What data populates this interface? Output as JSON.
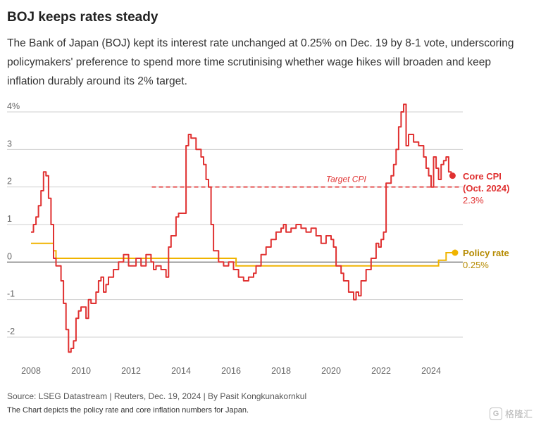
{
  "header": {
    "title": "BOJ keeps rates steady",
    "subtitle": "The Bank of Japan (BOJ) kept its interest rate unchanged at 0.25% on Dec. 19 by 8-1 vote, underscoring policymakers' preference to spend more time scrutinising whether wage hikes will broaden and keep inflation durably around its 2% target."
  },
  "footer": {
    "source": "Source: LSEG Datastream | Reuters, Dec. 19, 2024 | By Pasit Kongkunakornkul",
    "caption": "The Chart depicts the policy rate and core inflation numbers for Japan.",
    "watermark": "格隆汇",
    "watermark_badge": "G"
  },
  "colors": {
    "cpi": "#e03131",
    "policy": "#f0b400",
    "policy_label": "#b58a00",
    "grid": "#cfcfcf",
    "zero": "#555555",
    "axis_text": "#666666"
  },
  "chart_data": {
    "type": "line",
    "title": "BOJ keeps rates steady",
    "xlabel": "",
    "ylabel": "",
    "xlim": [
      2007.5,
      2025.8
    ],
    "ylim": [
      -2.5,
      4.2
    ],
    "x_ticks": [
      2008,
      2010,
      2012,
      2014,
      2016,
      2018,
      2020,
      2022,
      2024
    ],
    "x_tick_labels": [
      "2008",
      "2010",
      "2012",
      "2014",
      "2016",
      "2018",
      "2020",
      "2022",
      "2024"
    ],
    "y_ticks": [
      4,
      3,
      2,
      1,
      0,
      -1,
      -2
    ],
    "y_tick_labels": [
      "4%",
      "3",
      "2",
      "1",
      "0",
      "-1",
      "-2"
    ],
    "target": {
      "value": 2,
      "from": 2013.0,
      "to": 2025.0,
      "label": "Target CPI"
    },
    "series": [
      {
        "name": "Core CPI",
        "label_line1": "Core CPI",
        "label_line2": "(Oct. 2024)",
        "value_label": "2.3%",
        "last_value": 2.3,
        "points": [
          [
            2008.0,
            0.8
          ],
          [
            2008.1,
            1.0
          ],
          [
            2008.2,
            1.2
          ],
          [
            2008.3,
            1.5
          ],
          [
            2008.4,
            1.9
          ],
          [
            2008.5,
            2.4
          ],
          [
            2008.6,
            2.3
          ],
          [
            2008.7,
            1.7
          ],
          [
            2008.8,
            1.0
          ],
          [
            2008.9,
            0.1
          ],
          [
            2009.0,
            -0.1
          ],
          [
            2009.1,
            -0.1
          ],
          [
            2009.2,
            -0.5
          ],
          [
            2009.3,
            -1.1
          ],
          [
            2009.4,
            -1.8
          ],
          [
            2009.5,
            -2.4
          ],
          [
            2009.6,
            -2.3
          ],
          [
            2009.7,
            -2.1
          ],
          [
            2009.8,
            -1.5
          ],
          [
            2009.9,
            -1.3
          ],
          [
            2010.0,
            -1.2
          ],
          [
            2010.1,
            -1.2
          ],
          [
            2010.2,
            -1.5
          ],
          [
            2010.3,
            -1.0
          ],
          [
            2010.4,
            -1.1
          ],
          [
            2010.5,
            -1.1
          ],
          [
            2010.6,
            -0.8
          ],
          [
            2010.7,
            -0.5
          ],
          [
            2010.8,
            -0.4
          ],
          [
            2010.9,
            -0.8
          ],
          [
            2011.0,
            -0.6
          ],
          [
            2011.1,
            -0.4
          ],
          [
            2011.3,
            -0.2
          ],
          [
            2011.5,
            0.0
          ],
          [
            2011.7,
            0.2
          ],
          [
            2011.9,
            -0.1
          ],
          [
            2012.0,
            -0.1
          ],
          [
            2012.2,
            0.1
          ],
          [
            2012.4,
            -0.1
          ],
          [
            2012.6,
            0.2
          ],
          [
            2012.8,
            0.0
          ],
          [
            2012.9,
            -0.2
          ],
          [
            2013.0,
            -0.1
          ],
          [
            2013.2,
            -0.2
          ],
          [
            2013.4,
            -0.4
          ],
          [
            2013.5,
            0.4
          ],
          [
            2013.6,
            0.7
          ],
          [
            2013.8,
            1.2
          ],
          [
            2013.9,
            1.3
          ],
          [
            2014.0,
            1.3
          ],
          [
            2014.1,
            1.3
          ],
          [
            2014.2,
            3.1
          ],
          [
            2014.3,
            3.4
          ],
          [
            2014.4,
            3.3
          ],
          [
            2014.6,
            3.0
          ],
          [
            2014.8,
            2.8
          ],
          [
            2014.9,
            2.6
          ],
          [
            2015.0,
            2.2
          ],
          [
            2015.1,
            2.0
          ],
          [
            2015.2,
            1.0
          ],
          [
            2015.3,
            0.3
          ],
          [
            2015.5,
            0.0
          ],
          [
            2015.7,
            -0.1
          ],
          [
            2015.9,
            0.0
          ],
          [
            2016.0,
            0.0
          ],
          [
            2016.1,
            -0.2
          ],
          [
            2016.3,
            -0.4
          ],
          [
            2016.5,
            -0.5
          ],
          [
            2016.7,
            -0.4
          ],
          [
            2016.9,
            -0.3
          ],
          [
            2017.0,
            -0.1
          ],
          [
            2017.2,
            0.2
          ],
          [
            2017.4,
            0.4
          ],
          [
            2017.6,
            0.6
          ],
          [
            2017.8,
            0.8
          ],
          [
            2018.0,
            0.9
          ],
          [
            2018.1,
            1.0
          ],
          [
            2018.2,
            0.8
          ],
          [
            2018.4,
            0.9
          ],
          [
            2018.6,
            1.0
          ],
          [
            2018.8,
            0.9
          ],
          [
            2019.0,
            0.8
          ],
          [
            2019.2,
            0.9
          ],
          [
            2019.4,
            0.7
          ],
          [
            2019.6,
            0.5
          ],
          [
            2019.8,
            0.7
          ],
          [
            2020.0,
            0.6
          ],
          [
            2020.1,
            0.4
          ],
          [
            2020.2,
            -0.1
          ],
          [
            2020.4,
            -0.3
          ],
          [
            2020.5,
            -0.5
          ],
          [
            2020.7,
            -0.8
          ],
          [
            2020.9,
            -1.0
          ],
          [
            2021.0,
            -0.8
          ],
          [
            2021.1,
            -0.9
          ],
          [
            2021.2,
            -0.5
          ],
          [
            2021.4,
            -0.2
          ],
          [
            2021.6,
            0.1
          ],
          [
            2021.8,
            0.5
          ],
          [
            2021.9,
            0.4
          ],
          [
            2022.0,
            0.6
          ],
          [
            2022.1,
            0.8
          ],
          [
            2022.2,
            2.1
          ],
          [
            2022.4,
            2.3
          ],
          [
            2022.5,
            2.6
          ],
          [
            2022.6,
            3.0
          ],
          [
            2022.7,
            3.6
          ],
          [
            2022.8,
            4.0
          ],
          [
            2022.9,
            4.2
          ],
          [
            2023.0,
            3.1
          ],
          [
            2023.1,
            3.4
          ],
          [
            2023.3,
            3.2
          ],
          [
            2023.5,
            3.1
          ],
          [
            2023.7,
            2.8
          ],
          [
            2023.8,
            2.5
          ],
          [
            2023.9,
            2.3
          ],
          [
            2024.0,
            2.0
          ],
          [
            2024.1,
            2.8
          ],
          [
            2024.2,
            2.5
          ],
          [
            2024.3,
            2.2
          ],
          [
            2024.4,
            2.6
          ],
          [
            2024.5,
            2.7
          ],
          [
            2024.6,
            2.8
          ],
          [
            2024.7,
            2.4
          ],
          [
            2024.8,
            2.3
          ]
        ]
      },
      {
        "name": "Policy rate",
        "label_line1": "Policy rate",
        "value_label": "0.25%",
        "last_value": 0.25,
        "points": [
          [
            2008.0,
            0.5
          ],
          [
            2008.8,
            0.5
          ],
          [
            2008.9,
            0.3
          ],
          [
            2009.0,
            0.1
          ],
          [
            2016.1,
            0.1
          ],
          [
            2016.2,
            -0.1
          ],
          [
            2024.2,
            -0.1
          ],
          [
            2024.3,
            0.05
          ],
          [
            2024.5,
            0.05
          ],
          [
            2024.6,
            0.25
          ],
          [
            2024.9,
            0.25
          ]
        ]
      }
    ]
  }
}
